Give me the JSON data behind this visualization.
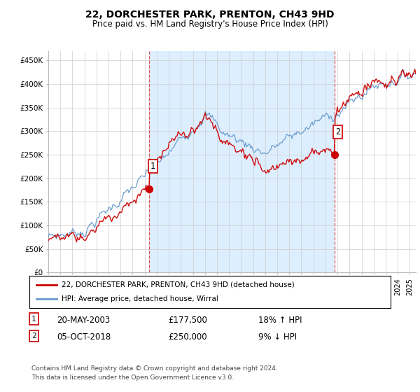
{
  "title": "22, DORCHESTER PARK, PRENTON, CH43 9HD",
  "subtitle": "Price paid vs. HM Land Registry's House Price Index (HPI)",
  "ylabel_ticks": [
    "£0",
    "£50K",
    "£100K",
    "£150K",
    "£200K",
    "£250K",
    "£300K",
    "£350K",
    "£400K",
    "£450K"
  ],
  "ytick_vals": [
    0,
    50000,
    100000,
    150000,
    200000,
    250000,
    300000,
    350000,
    400000,
    450000
  ],
  "ylim": [
    0,
    470000
  ],
  "xlim_start": 1995.0,
  "xlim_end": 2025.5,
  "sale1_year": 2003.38,
  "sale1_price": 177500,
  "sale1_label": "1",
  "sale1_date": "20-MAY-2003",
  "sale1_pct": "18% ↑ HPI",
  "sale2_year": 2018.75,
  "sale2_price": 250000,
  "sale2_label": "2",
  "sale2_date": "05-OCT-2018",
  "sale2_pct": "9% ↓ HPI",
  "legend_line1": "22, DORCHESTER PARK, PRENTON, CH43 9HD (detached house)",
  "legend_line2": "HPI: Average price, detached house, Wirral",
  "footer1": "Contains HM Land Registry data © Crown copyright and database right 2024.",
  "footer2": "This data is licensed under the Open Government Licence v3.0.",
  "sale_color": "#cc0000",
  "hpi_color": "#6699cc",
  "hpi_fill_color": "#ddeeff",
  "dashed_color": "#dd4444",
  "background_color": "#ffffff",
  "grid_color": "#cccccc"
}
